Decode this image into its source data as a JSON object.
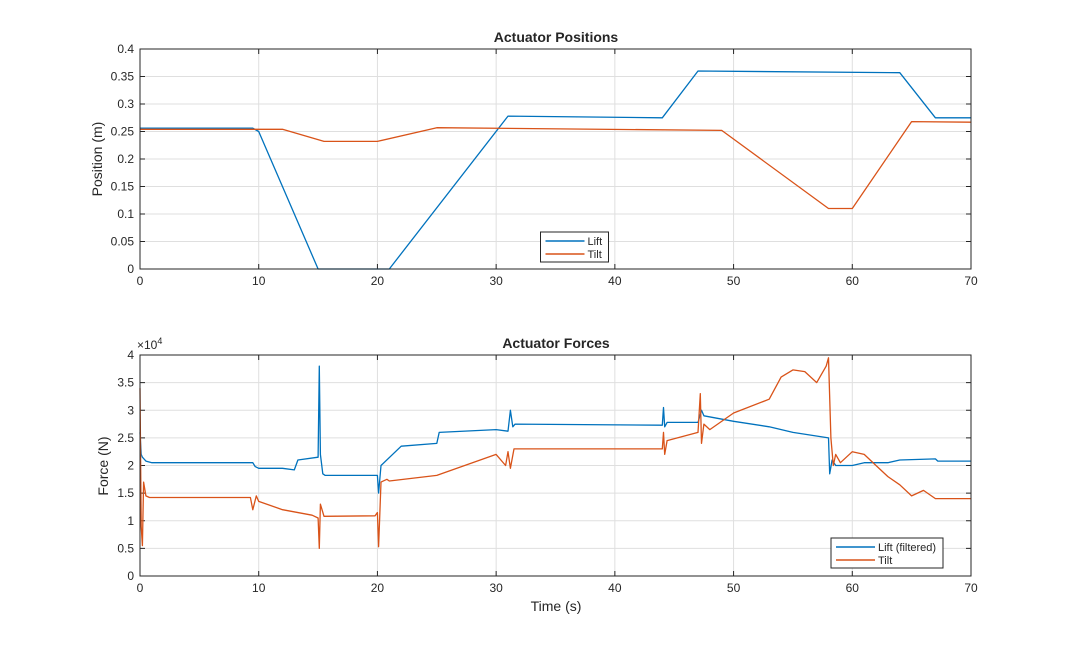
{
  "chart_data": [
    {
      "type": "line",
      "title": "Actuator Positions",
      "xlabel": "",
      "ylabel": "Position (m)",
      "xlim": [
        0,
        70
      ],
      "ylim": [
        0,
        0.4
      ],
      "xticks": [
        "0",
        "10",
        "20",
        "30",
        "40",
        "50",
        "60",
        "70"
      ],
      "yticks": [
        "0",
        "0.05",
        "0.1",
        "0.15",
        "0.2",
        "0.25",
        "0.3",
        "0.35",
        "0.4"
      ],
      "grid": true,
      "legend_position": "bottom-center",
      "series": [
        {
          "name": "Lift",
          "color": "#0072BD",
          "x": [
            0,
            9.5,
            10,
            15,
            20,
            21,
            31,
            44,
            47,
            64,
            67,
            70
          ],
          "y": [
            0.256,
            0.256,
            0.25,
            0.0,
            0.0,
            0.0,
            0.278,
            0.275,
            0.36,
            0.357,
            0.275,
            0.275
          ]
        },
        {
          "name": "Tilt",
          "color": "#D95319",
          "x": [
            0,
            12,
            15.5,
            20,
            25,
            49,
            58,
            60,
            65,
            70
          ],
          "y": [
            0.254,
            0.254,
            0.232,
            0.232,
            0.257,
            0.252,
            0.11,
            0.11,
            0.268,
            0.267
          ]
        }
      ]
    },
    {
      "type": "line",
      "title": "Actuator Forces",
      "xlabel": "Time (s)",
      "ylabel": "Force (N)",
      "exponent_label": "×10",
      "exponent": "4",
      "xlim": [
        0,
        70
      ],
      "ylim": [
        0,
        40000
      ],
      "xticks": [
        "0",
        "10",
        "20",
        "30",
        "40",
        "50",
        "60",
        "70"
      ],
      "yticks": [
        "0",
        "0.5",
        "1",
        "1.5",
        "2",
        "2.5",
        "3",
        "3.5",
        "4"
      ],
      "grid": true,
      "legend_position": "bottom-right",
      "series": [
        {
          "name": "Lift (filtered)",
          "color": "#0072BD",
          "x": [
            0,
            0.1,
            0.2,
            0.5,
            1,
            9.5,
            9.7,
            10,
            12,
            13,
            13.3,
            15,
            15.1,
            15.2,
            15.4,
            15.6,
            20,
            20.1,
            20.3,
            22,
            25,
            25.2,
            30,
            31,
            31.2,
            31.4,
            31.6,
            44,
            44.1,
            44.2,
            44.4,
            47,
            47.3,
            47.5,
            50,
            53,
            55,
            58,
            58.1,
            58.3,
            58.6,
            60,
            61,
            63,
            64,
            67,
            67.2,
            70
          ],
          "y": [
            26000,
            22000,
            21500,
            20800,
            20500,
            20500,
            19800,
            19500,
            19500,
            19200,
            21000,
            21500,
            38000,
            22000,
            18500,
            18200,
            18200,
            15000,
            20000,
            23500,
            24000,
            26000,
            26500,
            26200,
            30000,
            27000,
            27500,
            27300,
            30500,
            27000,
            27800,
            27800,
            30000,
            29000,
            28000,
            27000,
            26000,
            25000,
            18500,
            21000,
            20000,
            20000,
            20500,
            20500,
            21000,
            21200,
            20800,
            20800
          ]
        },
        {
          "name": "Tilt",
          "color": "#D95319",
          "x": [
            0,
            0.1,
            0.2,
            0.3,
            0.5,
            0.8,
            9.3,
            9.5,
            9.8,
            10,
            12,
            14.5,
            15,
            15.1,
            15.2,
            15.5,
            19.8,
            20,
            20.1,
            20.3,
            20.8,
            21,
            25,
            30,
            30.8,
            31,
            31.2,
            31.5,
            44,
            44.1,
            44.2,
            44.4,
            47,
            47.2,
            47.3,
            47.5,
            48,
            50,
            53,
            54,
            55,
            56,
            57,
            57.8,
            58,
            58.2,
            58.4,
            58.6,
            59,
            60,
            61,
            62,
            63,
            64,
            65,
            66,
            67,
            70
          ],
          "y": [
            34000,
            9000,
            5500,
            17000,
            14500,
            14200,
            14200,
            12000,
            14500,
            13500,
            12000,
            11000,
            10500,
            5000,
            13000,
            10800,
            10900,
            11500,
            5300,
            17000,
            17500,
            17200,
            18200,
            22000,
            20000,
            22500,
            19500,
            23000,
            23000,
            26000,
            22000,
            24500,
            26000,
            33000,
            24000,
            27500,
            26500,
            29500,
            32000,
            36000,
            37300,
            37000,
            35000,
            38000,
            39500,
            25000,
            20000,
            22000,
            20500,
            22500,
            22000,
            20000,
            18000,
            16500,
            14500,
            15500,
            14000,
            14000
          ]
        }
      ]
    }
  ]
}
